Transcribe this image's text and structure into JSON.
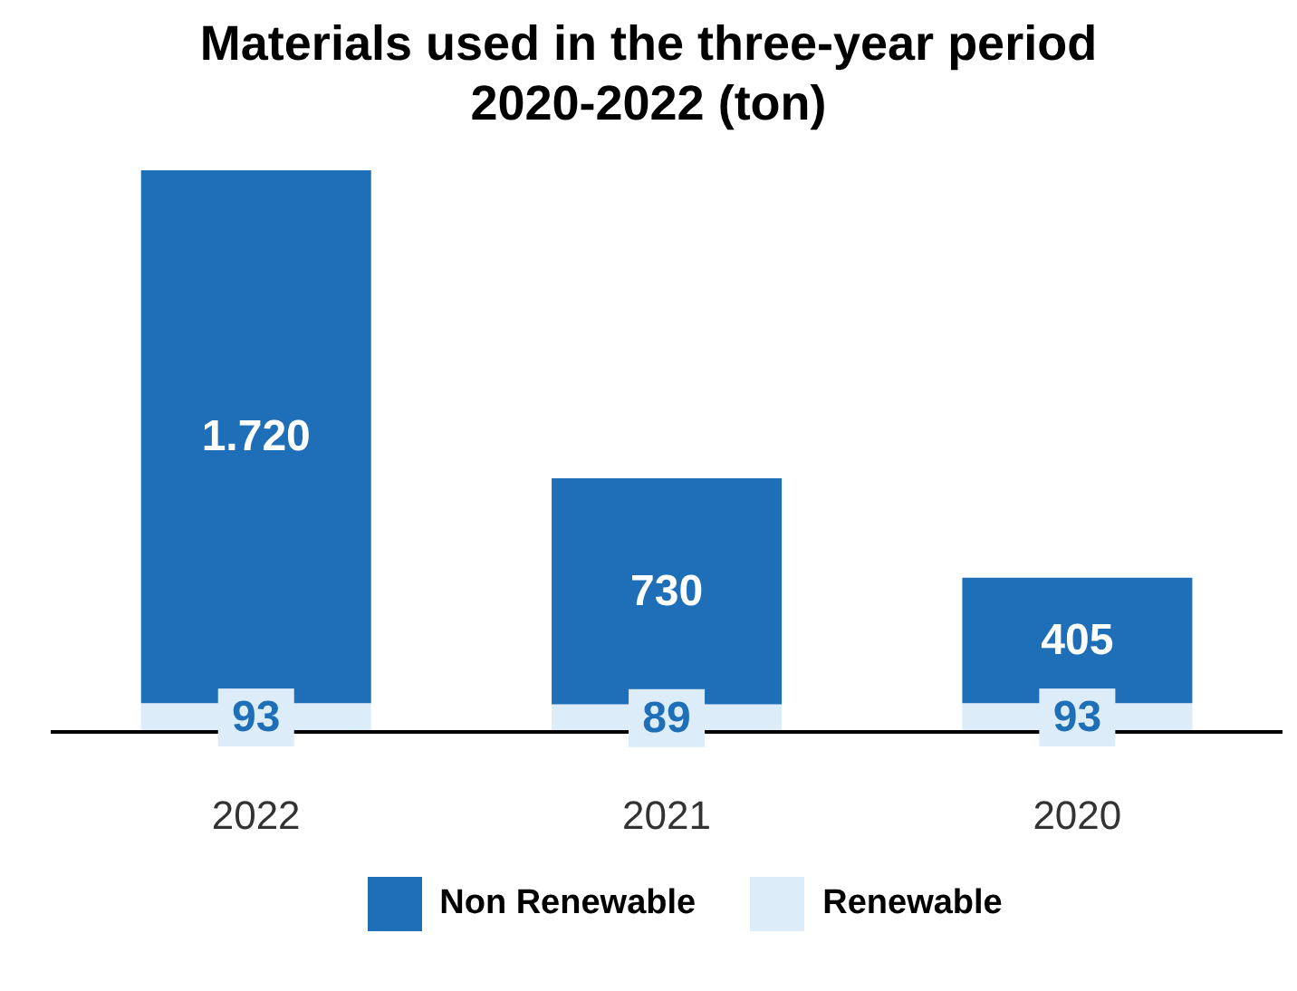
{
  "chart_data": {
    "type": "bar",
    "title": "Materials used in the three-year period 2020-2022 (ton)",
    "categories": [
      "2022",
      "2021",
      "2020"
    ],
    "stacked": true,
    "legend": "bottom",
    "grid": false,
    "series": [
      {
        "name": "Renewable",
        "color": "#dcedf9",
        "values": [
          93,
          89,
          93
        ],
        "value_labels": [
          "93",
          "89",
          "93"
        ]
      },
      {
        "name": "Non Renewable",
        "color": "#1f6fb8",
        "values": [
          1720,
          730,
          405
        ],
        "value_labels": [
          "1.720",
          "730",
          "405"
        ]
      }
    ]
  }
}
